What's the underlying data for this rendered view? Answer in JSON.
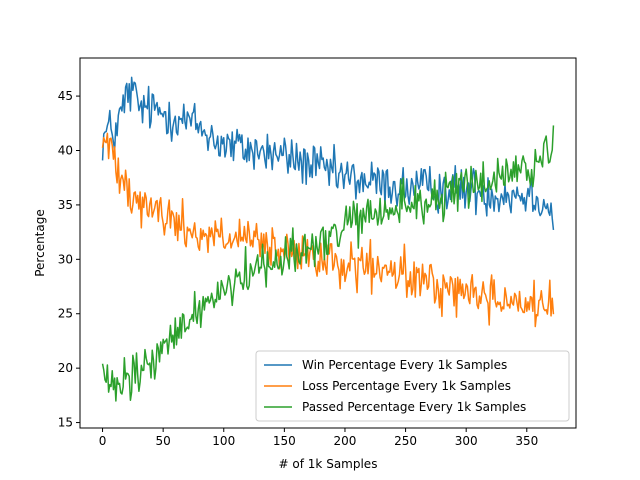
{
  "chart_data": {
    "type": "line",
    "title": "",
    "xlabel": "# of 1k Samples",
    "ylabel": "Percentage",
    "xlim": [
      -18.6,
      390.6
    ],
    "ylim": [
      14.5,
      48.5
    ],
    "xticks": [
      0,
      50,
      100,
      150,
      200,
      250,
      300,
      350
    ],
    "yticks": [
      15,
      20,
      25,
      30,
      35,
      40,
      45
    ],
    "grid": false,
    "legend_position": "lower-right",
    "n_points": 373,
    "series": [
      {
        "name": "Win Percentage Every 1k Samples",
        "color": "#1f77b4",
        "trend": [
          [
            0,
            41
          ],
          [
            5,
            42
          ],
          [
            10,
            41.5
          ],
          [
            20,
            45
          ],
          [
            25,
            45.5
          ],
          [
            30,
            44
          ],
          [
            50,
            43.5
          ],
          [
            75,
            42.5
          ],
          [
            100,
            40.5
          ],
          [
            125,
            40
          ],
          [
            150,
            39.5
          ],
          [
            175,
            38.5
          ],
          [
            200,
            37.5
          ],
          [
            225,
            37
          ],
          [
            250,
            36.5
          ],
          [
            275,
            36.5
          ],
          [
            300,
            36.5
          ],
          [
            325,
            36
          ],
          [
            350,
            36
          ],
          [
            365,
            35.5
          ],
          [
            372,
            33.5
          ]
        ],
        "noise": 1.6
      },
      {
        "name": "Loss Percentage Every 1k Samples",
        "color": "#ff7f0e",
        "trend": [
          [
            0,
            41
          ],
          [
            10,
            39.5
          ],
          [
            25,
            36
          ],
          [
            50,
            34
          ],
          [
            75,
            32.5
          ],
          [
            100,
            32
          ],
          [
            125,
            31.5
          ],
          [
            150,
            30.5
          ],
          [
            175,
            30
          ],
          [
            200,
            29.5
          ],
          [
            225,
            29
          ],
          [
            250,
            28.5
          ],
          [
            275,
            27.5
          ],
          [
            300,
            27
          ],
          [
            325,
            26.5
          ],
          [
            350,
            26
          ],
          [
            372,
            25.5
          ]
        ],
        "noise": 1.6
      },
      {
        "name": "Passed Percentage Every 1k Samples",
        "color": "#2ca02c",
        "trend": [
          [
            0,
            20
          ],
          [
            3,
            18.5
          ],
          [
            10,
            18
          ],
          [
            25,
            19
          ],
          [
            50,
            21.5
          ],
          [
            75,
            25
          ],
          [
            100,
            27.5
          ],
          [
            125,
            29
          ],
          [
            150,
            30.5
          ],
          [
            175,
            31
          ],
          [
            200,
            33
          ],
          [
            225,
            34
          ],
          [
            250,
            35
          ],
          [
            275,
            35.5
          ],
          [
            300,
            36.5
          ],
          [
            325,
            37.5
          ],
          [
            350,
            38.5
          ],
          [
            365,
            39
          ],
          [
            372,
            40.5
          ]
        ],
        "noise": 1.6
      }
    ]
  }
}
